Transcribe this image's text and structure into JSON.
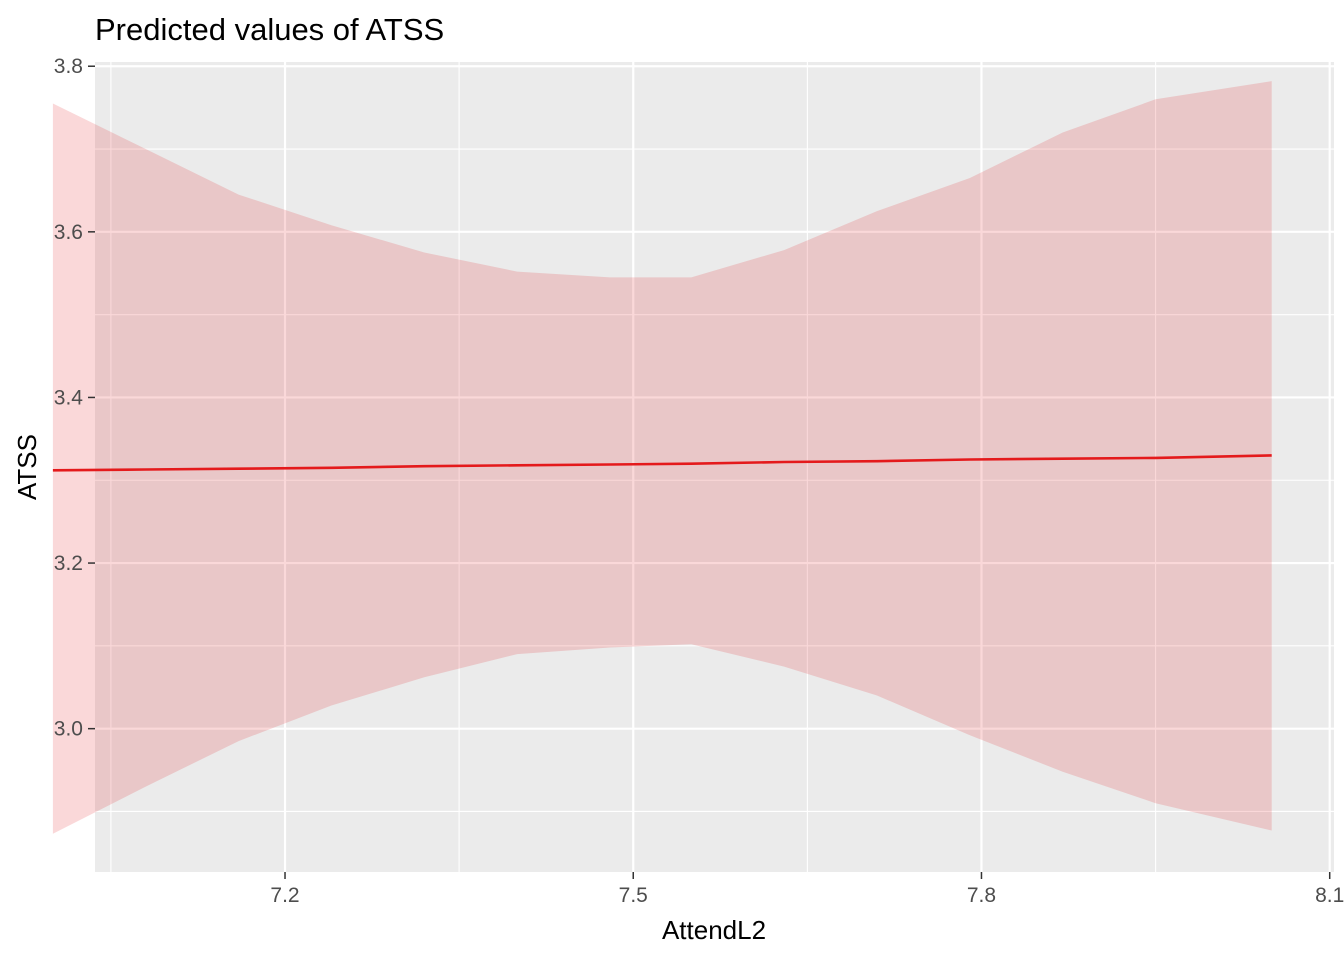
{
  "chart_data": {
    "type": "line",
    "title": "Predicted values of ATSS",
    "xlabel": "AttendL2",
    "ylabel": "ATSS",
    "xlim": [
      7.0363,
      8.1037
    ],
    "ylim": [
      2.8269,
      3.8051
    ],
    "x_ticks": [
      7.2,
      7.5,
      7.8,
      8.1
    ],
    "x_tick_labels": [
      "7.2",
      "7.5",
      "7.8",
      "8.1"
    ],
    "x_minor_ticks": [
      7.05,
      7.35,
      7.65,
      7.95
    ],
    "y_ticks": [
      3.0,
      3.2,
      3.4,
      3.6,
      3.8
    ],
    "y_tick_labels": [
      "3.0",
      "3.2",
      "3.4",
      "3.6",
      "3.8"
    ],
    "y_minor_ticks": [
      2.9,
      3.1,
      3.3,
      3.5,
      3.7
    ],
    "grid": true,
    "series": [
      {
        "line_color": "#e41a1c",
        "band_color": "#e41a1c",
        "band_opacity": 0.17,
        "x": [
          7.0,
          7.08,
          7.16,
          7.24,
          7.32,
          7.4,
          7.48,
          7.55,
          7.63,
          7.71,
          7.79,
          7.87,
          7.95,
          8.05
        ],
        "y": [
          3.312,
          3.313,
          3.314,
          3.315,
          3.317,
          3.318,
          3.319,
          3.32,
          3.322,
          3.323,
          3.325,
          3.326,
          3.327,
          3.33
        ],
        "lower": [
          2.873,
          2.93,
          2.985,
          3.028,
          3.062,
          3.09,
          3.098,
          3.102,
          3.075,
          3.04,
          2.992,
          2.948,
          2.91,
          2.877
        ],
        "upper": [
          3.755,
          3.7,
          3.645,
          3.608,
          3.575,
          3.552,
          3.545,
          3.545,
          3.578,
          3.625,
          3.665,
          3.72,
          3.76,
          3.782
        ]
      }
    ]
  }
}
